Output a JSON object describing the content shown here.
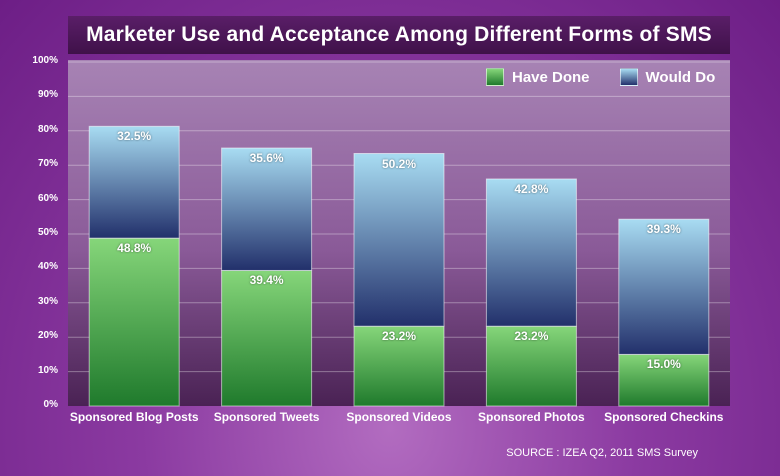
{
  "title": "Marketer Use and Acceptance Among Different Forms of SMS",
  "source": "SOURCE : IZEA Q2, 2011 SMS Survey",
  "chart_data": {
    "type": "bar",
    "stacked": true,
    "title": "Marketer Use and Acceptance Among Different Forms of SMS",
    "categories": [
      "Sponsored Blog Posts",
      "Sponsored Tweets",
      "Sponsored Videos",
      "Sponsored Photos",
      "Sponsored Checkins"
    ],
    "series": [
      {
        "name": "Have Done",
        "values": [
          48.8,
          39.4,
          23.2,
          23.2,
          15.0
        ],
        "labels": [
          "48.8%",
          "39.4%",
          "23.2%",
          "23.2%",
          "15.0%"
        ],
        "color": "#5cbf5c"
      },
      {
        "name": "Would Do",
        "values": [
          32.5,
          35.6,
          50.2,
          42.8,
          39.3
        ],
        "labels": [
          "32.5%",
          "35.6%",
          "50.2%",
          "42.8%",
          "39.3%"
        ],
        "color": "#5a76b8"
      }
    ],
    "yticks": [
      "0%",
      "10%",
      "20%",
      "30%",
      "40%",
      "50%",
      "60%",
      "70%",
      "80%",
      "90%",
      "100%"
    ],
    "ylim": [
      0,
      100
    ],
    "grid": true,
    "legend": "top-right"
  }
}
